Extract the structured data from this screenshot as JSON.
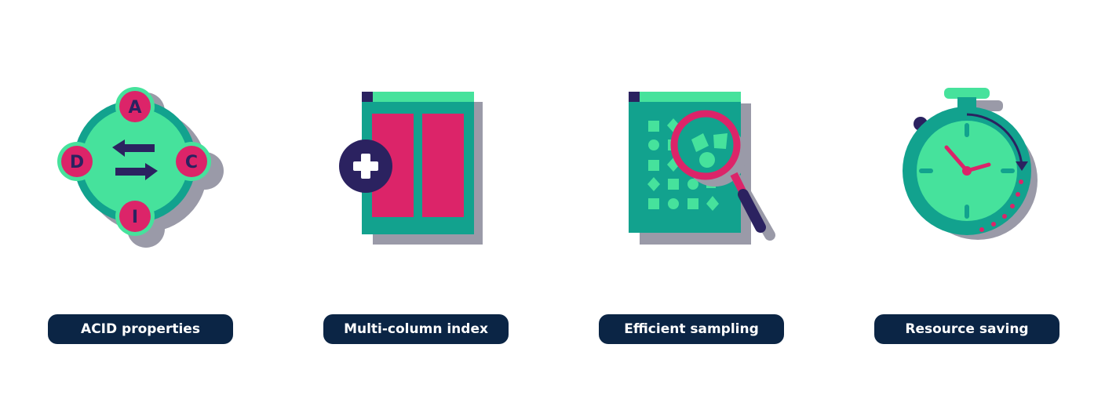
{
  "colors": {
    "navy": "#0b2545",
    "teal": "#12a28e",
    "mint": "#46e29c",
    "pink": "#dc2469",
    "shadow": "#9a9aa8",
    "dark_purple": "#2b2260"
  },
  "features": [
    {
      "label": "ACID properties",
      "icon": "acid-diagram-icon",
      "letters": {
        "top": "A",
        "right": "C",
        "bottom": "I",
        "left": "D"
      }
    },
    {
      "label": "Multi-column index",
      "icon": "multi-column-index-icon"
    },
    {
      "label": "Efficient sampling",
      "icon": "magnifier-sampling-icon"
    },
    {
      "label": "Resource saving",
      "icon": "stopwatch-icon"
    }
  ]
}
